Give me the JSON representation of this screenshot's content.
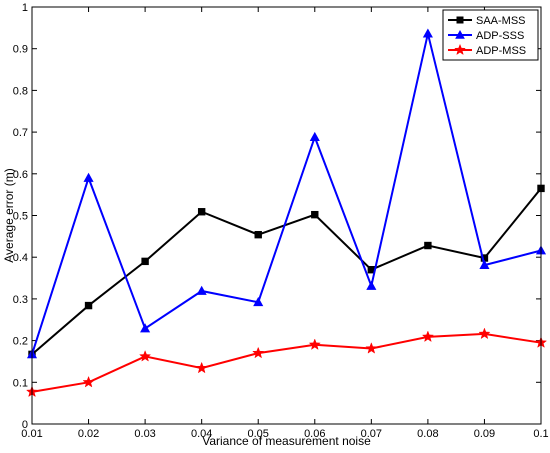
{
  "chart_data": {
    "type": "line",
    "xlabel": "Variance of measurement noise",
    "ylabel": "Average error (m)",
    "xlim": [
      0.01,
      0.1
    ],
    "ylim": [
      0,
      1
    ],
    "x": [
      0.01,
      0.02,
      0.03,
      0.04,
      0.05,
      0.06,
      0.07,
      0.08,
      0.09,
      0.1
    ],
    "x_ticks": [
      "0.01",
      "0.02",
      "0.03",
      "0.04",
      "0.05",
      "0.06",
      "0.07",
      "0.08",
      "0.09",
      "0.1"
    ],
    "y_ticks": [
      "0",
      "0.1",
      "0.2",
      "0.3",
      "0.4",
      "0.5",
      "0.6",
      "0.7",
      "0.8",
      "0.9",
      "1"
    ],
    "grid": false,
    "legend_position": "top-right",
    "series": [
      {
        "name": "SAA-MSS",
        "color": "#000000",
        "marker": "square",
        "values": [
          0.167,
          0.284,
          0.39,
          0.509,
          0.454,
          0.502,
          0.37,
          0.428,
          0.398,
          0.565
        ]
      },
      {
        "name": "ADP-SSS",
        "color": "#0000ff",
        "marker": "triangle",
        "values": [
          0.167,
          0.59,
          0.229,
          0.319,
          0.292,
          0.688,
          0.331,
          0.936,
          0.381,
          0.416
        ]
      },
      {
        "name": "ADP-MSS",
        "color": "#ff0000",
        "marker": "star",
        "values": [
          0.077,
          0.1,
          0.162,
          0.134,
          0.17,
          0.19,
          0.181,
          0.209,
          0.216,
          0.195
        ]
      }
    ]
  }
}
